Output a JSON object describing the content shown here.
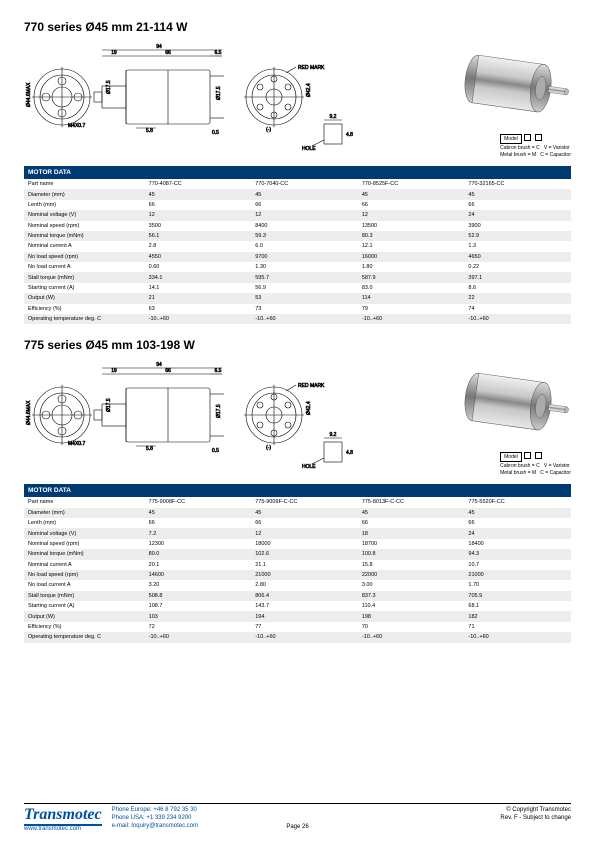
{
  "sections": [
    {
      "title": "770 series Ø45 mm 21-114 W",
      "dims": {
        "w": "94",
        "a": "19",
        "b": "66",
        "c": "6.5",
        "d": "5.8",
        "e": "94",
        "shaft": "Ø17.5",
        "bore": "M4X0.7",
        "front": "Ø44.6MAX",
        "back": "Ø44.6MAX",
        "od": "Ø42.4",
        "h": "0.5",
        "hole": "HOLE",
        "h2": "9.2",
        "h3": "4.8",
        "mark": "RED MARK",
        "minus": "(-)"
      },
      "legend": {
        "model": "Model",
        "carbon": "Cabron brush = C",
        "metal": "Metal brush = M",
        "varistor": "V = Varistor",
        "cap": "C = Capacitor"
      },
      "table": {
        "header": "MOTOR DATA",
        "columns": [
          "770-4087-CC",
          "770-7040-CC",
          "770-8525F-CC",
          "770-32165-CC"
        ],
        "rows": [
          {
            "label": "Part name",
            "vals": [
              "770-4087-CC",
              "770-7040-CC",
              "770-8525F-CC",
              "770-32165-CC"
            ]
          },
          {
            "label": "Diameter (mm)",
            "vals": [
              "45",
              "45",
              "45",
              "45"
            ]
          },
          {
            "label": "Lenth (mm)",
            "vals": [
              "66",
              "66",
              "66",
              "66"
            ]
          },
          {
            "label": "Nominal voltage (V)",
            "vals": [
              "12",
              "12",
              "12",
              "24"
            ]
          },
          {
            "label": "Nominal speed (rpm)",
            "vals": [
              "3500",
              "8400",
              "13500",
              "3900"
            ]
          },
          {
            "label": "Nominal torque (mNm)",
            "vals": [
              "56.1",
              "59.3",
              "80.3",
              "52.9"
            ]
          },
          {
            "label": "Nominal current A",
            "vals": [
              "2.8",
              "6.0",
              "12.1",
              "1.3"
            ]
          },
          {
            "label": "No load speed (rpm)",
            "vals": [
              "4550",
              "9700",
              "16000",
              "4650"
            ]
          },
          {
            "label": "No load current A",
            "vals": [
              "0.60",
              "1.30",
              "1.80",
              "0.22"
            ]
          },
          {
            "label": "Stall torque (mNm)",
            "vals": [
              "334.1",
              "595.7",
              "587.9",
              "397.1"
            ]
          },
          {
            "label": "Starting current (A)",
            "vals": [
              "14.1",
              "56.9",
              "83.0",
              "8.6"
            ]
          },
          {
            "label": "Output (W)",
            "vals": [
              "21",
              "53",
              "114",
              "22"
            ]
          },
          {
            "label": "Efficiency (%)",
            "vals": [
              "63",
              "73",
              "79",
              "74"
            ]
          },
          {
            "label": "Operating temperature deg. C",
            "vals": [
              "-10..+60",
              "-10..+60",
              "-10..+60",
              "-10..+60"
            ]
          }
        ]
      }
    },
    {
      "title": "775 series Ø45 mm 103-198 W",
      "dims": {
        "w": "94",
        "a": "19",
        "b": "66",
        "c": "6.5",
        "d": "5.8",
        "e": "94",
        "shaft": "Ø17.5",
        "bore": "M4X0.7",
        "front": "Ø44.6MAX",
        "back": "Ø44.6MAX",
        "od": "Ø42.4",
        "h": "0.5",
        "hole": "HOLE",
        "h2": "9.2",
        "h3": "4.8",
        "mark": "RED MARK",
        "minus": "(-)"
      },
      "legend": {
        "model": "Model",
        "carbon": "Cabron brush = C",
        "metal": "Metal brush = M",
        "varistor": "V = Varistor",
        "cap": "C = Capacitor"
      },
      "table": {
        "header": "MOTOR DATA",
        "columns": [
          "775-9008F-CC",
          "775-9009F-C-CC",
          "775-8013F-C-CC",
          "775-5520F-CC"
        ],
        "rows": [
          {
            "label": "Part name",
            "vals": [
              "775-9008F-CC",
              "775-9009F-C-CC",
              "775-8013F-C-CC",
              "775-5520F-CC"
            ]
          },
          {
            "label": "Diameter (mm)",
            "vals": [
              "45",
              "45",
              "45",
              "45"
            ]
          },
          {
            "label": "Lenth (mm)",
            "vals": [
              "66",
              "66",
              "66",
              "66"
            ]
          },
          {
            "label": "Nominal voltage (V)",
            "vals": [
              "7.2",
              "12",
              "18",
              "24"
            ]
          },
          {
            "label": "Nominal speed (rpm)",
            "vals": [
              "12300",
              "18000",
              "18700",
              "18400"
            ]
          },
          {
            "label": "Nominal torque (mNm)",
            "vals": [
              "80.0",
              "102.6",
              "100.8",
              "94.3"
            ]
          },
          {
            "label": "Nominal current A",
            "vals": [
              "20.1",
              "21.1",
              "15.8",
              "10.7"
            ]
          },
          {
            "label": "No load speed (rpm)",
            "vals": [
              "14600",
              "21000",
              "22000",
              "21000"
            ]
          },
          {
            "label": "No load current A",
            "vals": [
              "3.20",
              "2.80",
              "3.00",
              "1.70"
            ]
          },
          {
            "label": "Stall torque (mNm)",
            "vals": [
              "508.8",
              "806.4",
              "837.3",
              "705.9"
            ]
          },
          {
            "label": "Starting current (A)",
            "vals": [
              "108.7",
              "143.7",
              "110.4",
              "68.1"
            ]
          },
          {
            "label": "Output (W)",
            "vals": [
              "103",
              "194",
              "198",
              "182"
            ]
          },
          {
            "label": "Efficiency (%)",
            "vals": [
              "72",
              "77",
              "70",
              "71"
            ]
          },
          {
            "label": "Operating temperature deg. C",
            "vals": [
              "-10..+60",
              "-10..+60",
              "-10..+60",
              "-10..+60"
            ]
          }
        ]
      }
    }
  ],
  "footer": {
    "brand": "Transmotec",
    "www": "www.transmotec.com",
    "phone_eu": "Phone Europe: +46 8 792 35 30",
    "phone_us": "Phone USA:    +1 339 234 9200",
    "email": "e-mail: Inquiry@transmotec.com",
    "page": "Page 26",
    "copy": "© Copyright Transmotec",
    "rev": "Rev. F - Subject to change"
  }
}
